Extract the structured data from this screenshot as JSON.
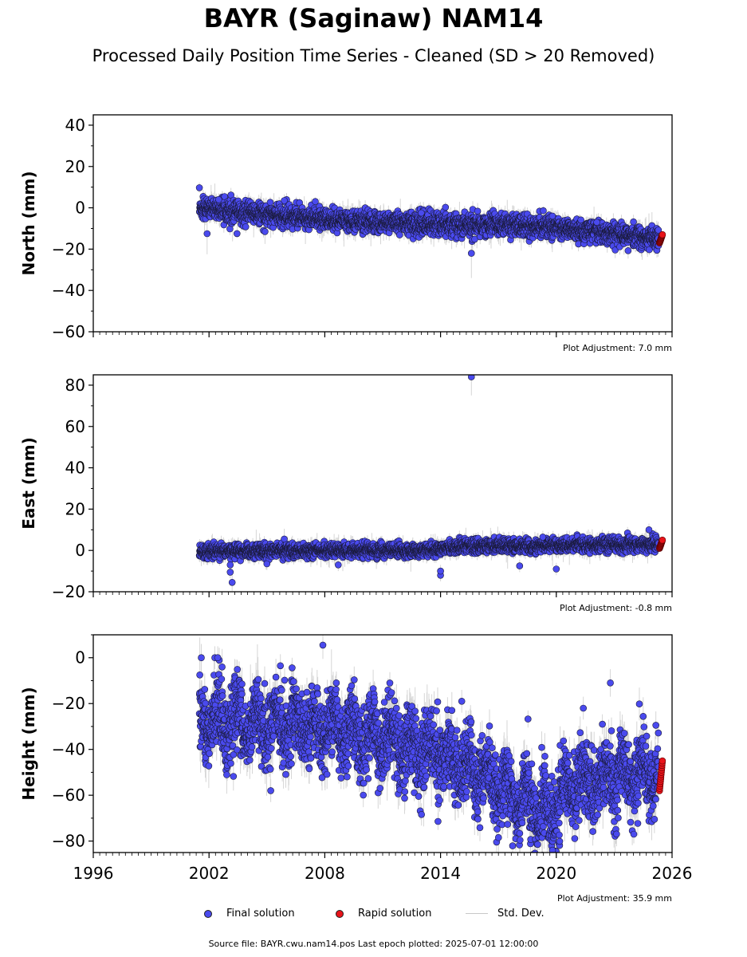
{
  "title": "BAYR (Saginaw) NAM14",
  "subtitle": "Processed Daily Position Time Series - Cleaned (SD > 20 Removed)",
  "source": "Source file: BAYR.cwu.nam14.pos  Last epoch plotted: 2025-07-01 12:00:00",
  "legend": {
    "final": "Final solution",
    "rapid": "Rapid solution",
    "std": "Std. Dev."
  },
  "colors": {
    "final": "#4a4aee",
    "rapid": "#e8141a",
    "std": "#c8c8c8"
  },
  "chart_data": [
    {
      "type": "scatter",
      "ylabel": "North (mm)",
      "adjustment": "Plot Adjustment: 7.0 mm",
      "xlim": [
        1996,
        2026
      ],
      "ylim": [
        -60,
        45
      ],
      "yticks": [
        -60,
        -40,
        -20,
        0,
        20,
        40
      ],
      "xticks": [
        1996,
        2002,
        2008,
        2014,
        2020,
        2026
      ],
      "show_xtick_labels": false,
      "trend": [
        [
          2001.5,
          0
        ],
        [
          2008,
          -6
        ],
        [
          2014,
          -8
        ],
        [
          2019.5,
          -9
        ],
        [
          2025.5,
          -15
        ]
      ],
      "noise": 2.5,
      "sd": 3,
      "rapid": {
        "x": [
          2025.35,
          2025.5
        ],
        "y": [
          -17,
          -13
        ]
      },
      "outliers": [
        {
          "x": 2015.6,
          "y": -22,
          "sd": 12
        },
        {
          "x": 2001.9,
          "y": -12.5,
          "sd": 10
        },
        {
          "x": 2005.9,
          "y": 3.5,
          "sd": 3
        },
        {
          "x": 2004.9,
          "y": -11.5,
          "sd": 6
        },
        {
          "x": 2002.5,
          "y": 4,
          "sd": 3
        },
        {
          "x": 2013.0,
          "y": -2.5,
          "sd": 4
        },
        {
          "x": 2019.8,
          "y": -4,
          "sd": 4
        },
        {
          "x": 2022.1,
          "y": -7,
          "sd": 4
        }
      ]
    },
    {
      "type": "scatter",
      "ylabel": "East (mm)",
      "adjustment": "Plot Adjustment: -0.8 mm",
      "xlim": [
        1996,
        2026
      ],
      "ylim": [
        -20,
        85
      ],
      "yticks": [
        -20,
        0,
        20,
        40,
        60,
        80
      ],
      "xticks": [
        1996,
        2002,
        2008,
        2014,
        2020,
        2026
      ],
      "show_xtick_labels": false,
      "trend": [
        [
          2001.5,
          -0.5
        ],
        [
          2008,
          0
        ],
        [
          2013.5,
          0
        ],
        [
          2015,
          2
        ],
        [
          2025.5,
          3
        ]
      ],
      "noise": 1.6,
      "sd": 2.5,
      "rapid": {
        "x": [
          2025.35,
          2025.5
        ],
        "y": [
          1,
          5
        ]
      },
      "outliers": [
        {
          "x": 2015.6,
          "y": 84,
          "sd": 9
        },
        {
          "x": 2003.2,
          "y": -15.5,
          "sd": 4
        },
        {
          "x": 2003.1,
          "y": -10.5,
          "sd": 3
        },
        {
          "x": 2003.1,
          "y": -7,
          "sd": 3
        },
        {
          "x": 2014.0,
          "y": -12,
          "sd": 3
        },
        {
          "x": 2014.0,
          "y": -10,
          "sd": 3
        },
        {
          "x": 2020.0,
          "y": -9,
          "sd": 3
        },
        {
          "x": 2024.8,
          "y": 10,
          "sd": 3
        },
        {
          "x": 2005.9,
          "y": 5.5,
          "sd": 5
        },
        {
          "x": 2018.1,
          "y": -7.5,
          "sd": 3
        },
        {
          "x": 2019.3,
          "y": 6.5,
          "sd": 3
        },
        {
          "x": 2005.0,
          "y": -6.5,
          "sd": 3
        },
        {
          "x": 2008.7,
          "y": -7,
          "sd": 3
        }
      ]
    },
    {
      "type": "scatter",
      "ylabel": "Height (mm)",
      "adjustment": "Plot Adjustment: 35.9 mm",
      "xlim": [
        1996,
        2026
      ],
      "ylim": [
        -85,
        10
      ],
      "yticks": [
        -80,
        -60,
        -40,
        -20,
        0
      ],
      "xticks": [
        1996,
        2002,
        2008,
        2014,
        2020,
        2026
      ],
      "xtick_labels": [
        "1996",
        "2002",
        "2008",
        "2014",
        "2020",
        "2026"
      ],
      "show_xtick_labels": true,
      "trend": [
        [
          2001.5,
          -27
        ],
        [
          2008,
          -30
        ],
        [
          2014,
          -42
        ],
        [
          2019.8,
          -68
        ],
        [
          2020.5,
          -55
        ],
        [
          2025.5,
          -50
        ]
      ],
      "noise": 8,
      "seasonal": 6,
      "sd": 6,
      "rapid": {
        "x": [
          2025.35,
          2025.5
        ],
        "y": [
          -58,
          -45
        ]
      },
      "outliers": [
        {
          "x": 2001.6,
          "y": 0,
          "sd": 6
        },
        {
          "x": 2002.3,
          "y": 0,
          "sd": 5
        },
        {
          "x": 2002.45,
          "y": 0,
          "sd": 5
        },
        {
          "x": 2007.9,
          "y": 5.5,
          "sd": 6
        },
        {
          "x": 2022.8,
          "y": -11,
          "sd": 6
        },
        {
          "x": 2021.4,
          "y": -22,
          "sd": 5
        },
        {
          "x": 2005.2,
          "y": -58,
          "sd": 5
        },
        {
          "x": 2019.8,
          "y": -84,
          "sd": 5
        },
        {
          "x": 2015.1,
          "y": -19,
          "sd": 5
        },
        {
          "x": 2005.7,
          "y": -3.5,
          "sd": 5
        },
        {
          "x": 2008.6,
          "y": -11,
          "sd": 5
        }
      ]
    }
  ]
}
